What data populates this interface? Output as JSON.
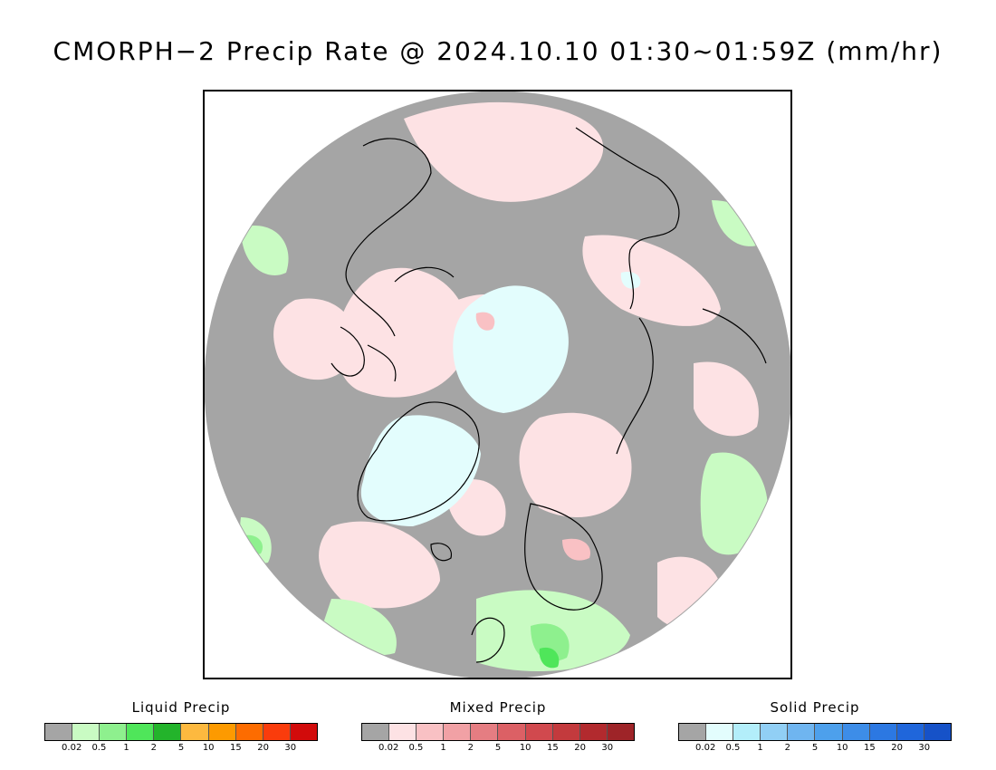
{
  "title": "CMORPH−2 Precip Rate @ 2024.10.10 01:30~01:59Z (mm/hr)",
  "legend_ticks": [
    "0.02",
    "0.5",
    "1",
    "2",
    "5",
    "10",
    "15",
    "20",
    "30"
  ],
  "legends": {
    "liquid": {
      "title": "Liquid Precip",
      "colors": [
        "#a5a5a5",
        "#c9fbc3",
        "#8ef08e",
        "#4fe65a",
        "#23b42b",
        "#fdb93f",
        "#fd9a00",
        "#fd6c00",
        "#fa3c0c",
        "#d20b0b"
      ]
    },
    "mixed": {
      "title": "Mixed Precip",
      "colors": [
        "#a5a5a5",
        "#fde2e4",
        "#f9c1c4",
        "#f1a1a5",
        "#e57d82",
        "#dc6065",
        "#d1494e",
        "#c33a3d",
        "#b22a2e",
        "#9e2428"
      ]
    },
    "solid": {
      "title": "Solid Precip",
      "colors": [
        "#a5a5a5",
        "#e3fdfd",
        "#b3eefa",
        "#91cff5",
        "#6fb5f0",
        "#4da0ec",
        "#3d8de8",
        "#2c78e2",
        "#1f66db",
        "#1652c8"
      ]
    }
  },
  "map": {
    "projection": "north-polar-stereographic",
    "background_color": "#a5a5a5",
    "coastline_color": "#000000"
  }
}
